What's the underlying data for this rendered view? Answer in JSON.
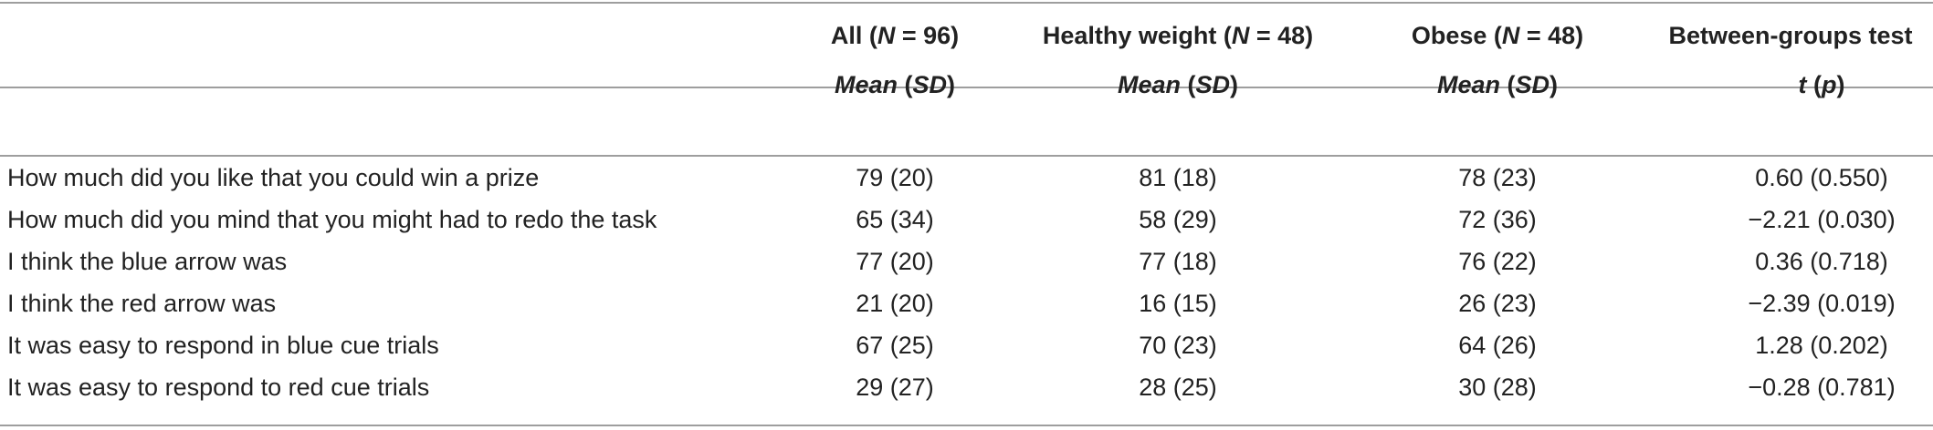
{
  "columns": [
    {
      "label_pre": "All (",
      "label_var": "N",
      "label_post": " = 96)",
      "sub_a": "Mean",
      "sub_b": " (",
      "sub_c": "SD",
      "sub_d": ")"
    },
    {
      "label_pre": "Healthy weight (",
      "label_var": "N",
      "label_post": " = 48)",
      "sub_a": "Mean",
      "sub_b": " (",
      "sub_c": "SD",
      "sub_d": ")"
    },
    {
      "label_pre": "Obese (",
      "label_var": "N",
      "label_post": " = 48)",
      "sub_a": "Mean",
      "sub_b": " (",
      "sub_c": "SD",
      "sub_d": ")"
    },
    {
      "label_pre": "Between-groups test",
      "label_var": "",
      "label_post": "",
      "sub_a": "t",
      "sub_b": " (",
      "sub_c": "p",
      "sub_d": ")"
    }
  ],
  "rows": [
    {
      "label": "How much did you like that you could win a prize",
      "all": "79 (20)",
      "healthy": "81 (18)",
      "obese": "78 (23)",
      "test": "0.60 (0.550)"
    },
    {
      "label": "How much did you mind that you might had to redo the task",
      "all": "65 (34)",
      "healthy": "58 (29)",
      "obese": "72 (36)",
      "test": "−2.21 (0.030)"
    },
    {
      "label": "I think the blue arrow was",
      "all": "77 (20)",
      "healthy": "77 (18)",
      "obese": "76 (22)",
      "test": "0.36 (0.718)"
    },
    {
      "label": "I think the red arrow was",
      "all": "21 (20)",
      "healthy": "16 (15)",
      "obese": "26 (23)",
      "test": "−2.39 (0.019)"
    },
    {
      "label": "It was easy to respond in blue cue trials",
      "all": "67 (25)",
      "healthy": "70 (23)",
      "obese": "64 (26)",
      "test": "1.28 (0.202)"
    },
    {
      "label": "It was easy to respond to red cue trials",
      "all": "29 (27)",
      "healthy": "28 (25)",
      "obese": "30 (28)",
      "test": "−0.28 (0.781)"
    }
  ]
}
